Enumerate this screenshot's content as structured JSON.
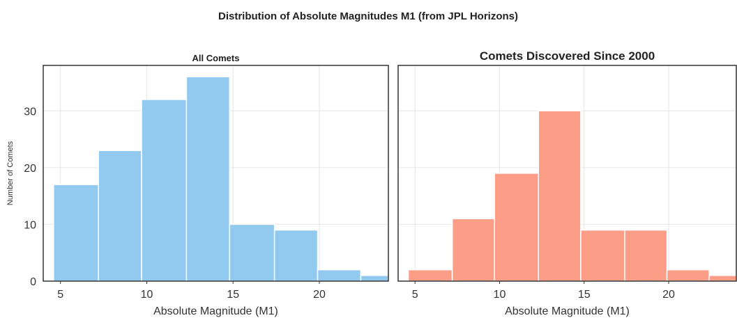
{
  "figure": {
    "suptitle": "Distribution of Absolute Magnitudes M1 (from JPL Horizons)"
  },
  "chart_data": [
    {
      "type": "bar",
      "title": "All Comets",
      "xlabel": "Absolute Magnitude (M1)",
      "ylabel": "Number of Comets",
      "xlim": [
        4.0,
        24.0
      ],
      "ylim": [
        0,
        38
      ],
      "xticks": [
        5,
        10,
        15,
        20
      ],
      "yticks": [
        0,
        10,
        20,
        30
      ],
      "bin_edges": [
        4.6,
        7.2,
        9.7,
        12.3,
        14.8,
        17.4,
        19.9,
        22.4,
        24.0
      ],
      "values": [
        17,
        23,
        32,
        36,
        10,
        9,
        2,
        1
      ],
      "color": "#92c9ef",
      "grid": true
    },
    {
      "type": "bar",
      "title": "Comets Discovered Since 2000",
      "xlabel": "Absolute Magnitude (M1)",
      "ylabel": "",
      "xlim": [
        4.0,
        24.0
      ],
      "ylim": [
        0,
        38
      ],
      "xticks": [
        5,
        10,
        15,
        20
      ],
      "yticks": [
        0,
        10,
        20,
        30
      ],
      "bin_edges": [
        4.6,
        7.2,
        9.7,
        12.3,
        14.8,
        17.4,
        19.9,
        22.4,
        24.0
      ],
      "values": [
        2,
        11,
        19,
        30,
        9,
        9,
        2,
        1
      ],
      "color": "#fc9d88",
      "grid": true
    }
  ]
}
